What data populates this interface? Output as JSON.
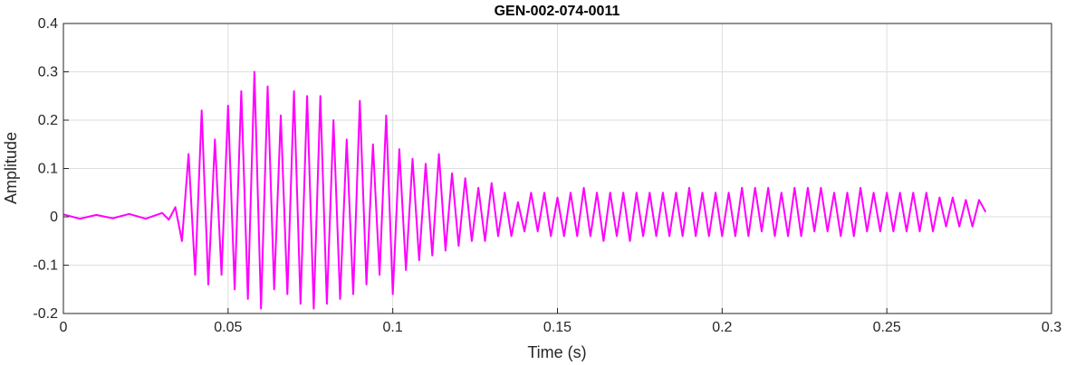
{
  "chart_data": {
    "type": "line",
    "title": "GEN-002-074-0011",
    "xlabel": "Time (s)",
    "ylabel": "Amplitude",
    "xlim": [
      0,
      0.3
    ],
    "ylim": [
      -0.2,
      0.4
    ],
    "xticks": [
      0,
      0.05,
      0.1,
      0.15,
      0.2,
      0.25,
      0.3
    ],
    "xtick_labels": [
      "0",
      "0.05",
      "0.1",
      "0.15",
      "0.2",
      "0.25",
      "0.3"
    ],
    "yticks": [
      -0.2,
      -0.1,
      0,
      0.1,
      0.2,
      0.3,
      0.4
    ],
    "ytick_labels": [
      "-0.2",
      "-0.1",
      "0",
      "0.1",
      "0.2",
      "0.3",
      "0.4"
    ],
    "grid": true,
    "line_color": "#ff00ff",
    "series": [
      {
        "x": [
          0,
          0.005,
          0.01,
          0.015,
          0.02,
          0.025,
          0.03,
          0.032,
          0.034,
          0.036,
          0.038,
          0.04,
          0.042,
          0.044,
          0.046,
          0.048,
          0.05,
          0.052,
          0.054,
          0.056,
          0.058,
          0.06,
          0.062,
          0.064,
          0.066,
          0.068,
          0.07,
          0.072,
          0.074,
          0.076,
          0.078,
          0.08,
          0.082,
          0.084,
          0.086,
          0.088,
          0.09,
          0.092,
          0.094,
          0.096,
          0.098,
          0.1,
          0.102,
          0.104,
          0.106,
          0.108,
          0.11,
          0.112,
          0.114,
          0.116,
          0.118,
          0.12,
          0.122,
          0.124,
          0.126,
          0.128,
          0.13,
          0.132,
          0.134,
          0.136,
          0.138,
          0.14,
          0.142,
          0.144,
          0.146,
          0.148,
          0.15,
          0.152,
          0.154,
          0.156,
          0.158,
          0.16,
          0.162,
          0.164,
          0.166,
          0.168,
          0.17,
          0.172,
          0.174,
          0.176,
          0.178,
          0.18,
          0.182,
          0.184,
          0.186,
          0.188,
          0.19,
          0.192,
          0.194,
          0.196,
          0.198,
          0.2,
          0.202,
          0.204,
          0.206,
          0.208,
          0.21,
          0.212,
          0.214,
          0.216,
          0.218,
          0.22,
          0.222,
          0.224,
          0.226,
          0.228,
          0.23,
          0.232,
          0.234,
          0.236,
          0.238,
          0.24,
          0.242,
          0.244,
          0.246,
          0.248,
          0.25,
          0.252,
          0.254,
          0.256,
          0.258,
          0.26,
          0.262,
          0.264,
          0.266,
          0.268,
          0.27,
          0.272,
          0.274,
          0.276,
          0.278,
          0.28
        ],
        "y": [
          0.005,
          -0.004,
          0.004,
          -0.003,
          0.006,
          -0.004,
          0.008,
          -0.006,
          0.02,
          -0.05,
          0.13,
          -0.12,
          0.22,
          -0.14,
          0.16,
          -0.12,
          0.23,
          -0.15,
          0.26,
          -0.17,
          0.3,
          -0.19,
          0.27,
          -0.15,
          0.21,
          -0.16,
          0.26,
          -0.18,
          0.25,
          -0.19,
          0.25,
          -0.18,
          0.2,
          -0.17,
          0.16,
          -0.16,
          0.24,
          -0.14,
          0.15,
          -0.12,
          0.21,
          -0.16,
          0.14,
          -0.11,
          0.12,
          -0.09,
          0.11,
          -0.08,
          0.13,
          -0.07,
          0.09,
          -0.06,
          0.08,
          -0.05,
          0.06,
          -0.05,
          0.07,
          -0.04,
          0.05,
          -0.04,
          0.03,
          -0.03,
          0.05,
          -0.03,
          0.05,
          -0.04,
          0.04,
          -0.04,
          0.05,
          -0.04,
          0.06,
          -0.04,
          0.05,
          -0.05,
          0.05,
          -0.04,
          0.05,
          -0.05,
          0.05,
          -0.04,
          0.05,
          -0.04,
          0.05,
          -0.04,
          0.05,
          -0.04,
          0.06,
          -0.04,
          0.05,
          -0.04,
          0.05,
          -0.04,
          0.05,
          -0.04,
          0.06,
          -0.04,
          0.06,
          -0.03,
          0.06,
          -0.04,
          0.05,
          -0.04,
          0.06,
          -0.04,
          0.06,
          -0.03,
          0.06,
          -0.03,
          0.05,
          -0.04,
          0.05,
          -0.04,
          0.06,
          -0.03,
          0.05,
          -0.03,
          0.05,
          -0.03,
          0.05,
          -0.03,
          0.05,
          -0.03,
          0.05,
          -0.03,
          0.04,
          -0.02,
          0.04,
          -0.02,
          0.035,
          -0.02,
          0.035,
          0.01
        ]
      }
    ]
  }
}
